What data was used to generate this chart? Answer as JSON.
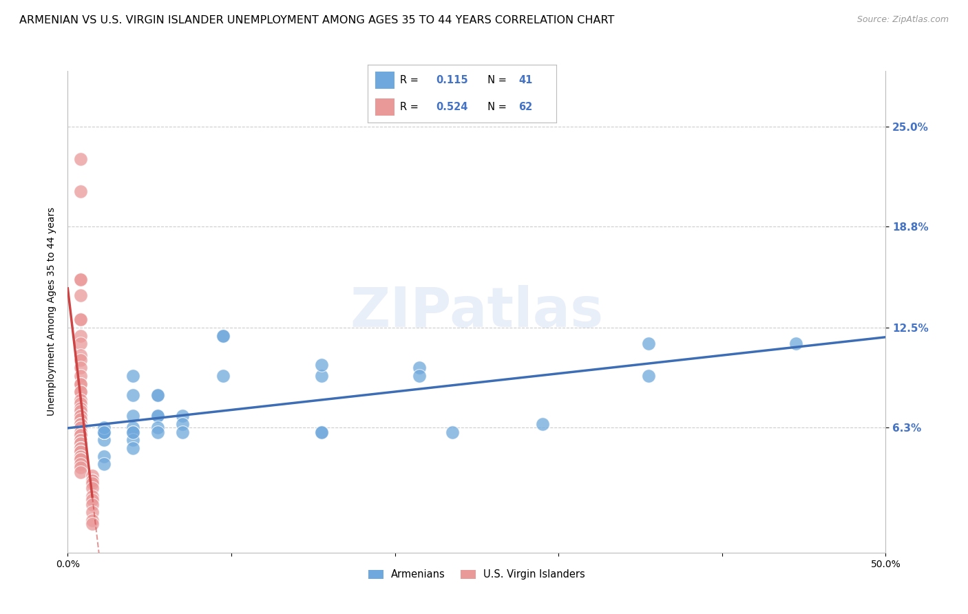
{
  "title": "ARMENIAN VS U.S. VIRGIN ISLANDER UNEMPLOYMENT AMONG AGES 35 TO 44 YEARS CORRELATION CHART",
  "source_text": "Source: ZipAtlas.com",
  "ylabel": "Unemployment Among Ages 35 to 44 years",
  "watermark": "ZIPatlas",
  "xlim": [
    0,
    0.5
  ],
  "ylim": [
    -0.015,
    0.285
  ],
  "yticks": [
    0.063,
    0.125,
    0.188,
    0.25
  ],
  "ytick_labels": [
    "6.3%",
    "12.5%",
    "18.8%",
    "25.0%"
  ],
  "xtick_left_label": "0.0%",
  "xtick_right_label": "50.0%",
  "armenians_x": [
    0.355,
    0.445,
    0.095,
    0.155,
    0.215,
    0.155,
    0.215,
    0.29,
    0.355,
    0.095,
    0.155,
    0.235,
    0.155,
    0.095,
    0.04,
    0.055,
    0.04,
    0.055,
    0.055,
    0.04,
    0.055,
    0.07,
    0.07,
    0.055,
    0.04,
    0.04,
    0.055,
    0.07,
    0.04,
    0.04,
    0.022,
    0.022,
    0.04,
    0.022,
    0.022,
    0.022,
    0.022,
    0.022,
    0.022,
    0.008,
    0.008
  ],
  "armenians_y": [
    0.115,
    0.115,
    0.12,
    0.095,
    0.1,
    0.102,
    0.095,
    0.065,
    0.095,
    0.095,
    0.06,
    0.06,
    0.06,
    0.12,
    0.095,
    0.083,
    0.083,
    0.083,
    0.07,
    0.07,
    0.07,
    0.07,
    0.065,
    0.063,
    0.063,
    0.06,
    0.06,
    0.06,
    0.055,
    0.05,
    0.055,
    0.06,
    0.06,
    0.06,
    0.045,
    0.04,
    0.06,
    0.063,
    0.06,
    0.063,
    0.06
  ],
  "virgin_x": [
    0.008,
    0.008,
    0.008,
    0.008,
    0.008,
    0.008,
    0.008,
    0.008,
    0.008,
    0.008,
    0.008,
    0.008,
    0.008,
    0.008,
    0.008,
    0.008,
    0.008,
    0.008,
    0.008,
    0.008,
    0.008,
    0.008,
    0.008,
    0.008,
    0.008,
    0.008,
    0.008,
    0.008,
    0.008,
    0.008,
    0.008,
    0.008,
    0.008,
    0.008,
    0.008,
    0.008,
    0.008,
    0.008,
    0.008,
    0.008,
    0.008,
    0.008,
    0.008,
    0.008,
    0.008,
    0.008,
    0.008,
    0.008,
    0.008,
    0.008,
    0.008,
    0.015,
    0.015,
    0.015,
    0.015,
    0.015,
    0.015,
    0.015,
    0.015,
    0.015,
    0.015,
    0.015
  ],
  "virgin_y": [
    0.23,
    0.21,
    0.155,
    0.155,
    0.145,
    0.13,
    0.13,
    0.12,
    0.115,
    0.108,
    0.105,
    0.1,
    0.095,
    0.09,
    0.09,
    0.085,
    0.085,
    0.08,
    0.078,
    0.075,
    0.073,
    0.07,
    0.07,
    0.068,
    0.065,
    0.065,
    0.065,
    0.063,
    0.063,
    0.063,
    0.06,
    0.06,
    0.06,
    0.058,
    0.058,
    0.055,
    0.055,
    0.053,
    0.053,
    0.05,
    0.05,
    0.05,
    0.048,
    0.048,
    0.045,
    0.045,
    0.043,
    0.043,
    0.04,
    0.038,
    0.035,
    0.033,
    0.03,
    0.03,
    0.028,
    0.025,
    0.02,
    0.018,
    0.015,
    0.01,
    0.005,
    0.003
  ],
  "armenian_R": 0.115,
  "armenian_N": 41,
  "virgin_R": 0.524,
  "virgin_N": 62,
  "blue_color": "#6fa8dc",
  "pink_color": "#ea9999",
  "blue_line_color": "#3d6eb5",
  "pink_line_color": "#cc4444",
  "legend_R_color": "#4472c4",
  "title_fontsize": 11.5,
  "axis_label_fontsize": 10,
  "tick_fontsize": 10,
  "source_fontsize": 9,
  "watermark_color": "#c8d8ef",
  "right_tick_color": "#4472c4",
  "grid_color": "#cccccc"
}
